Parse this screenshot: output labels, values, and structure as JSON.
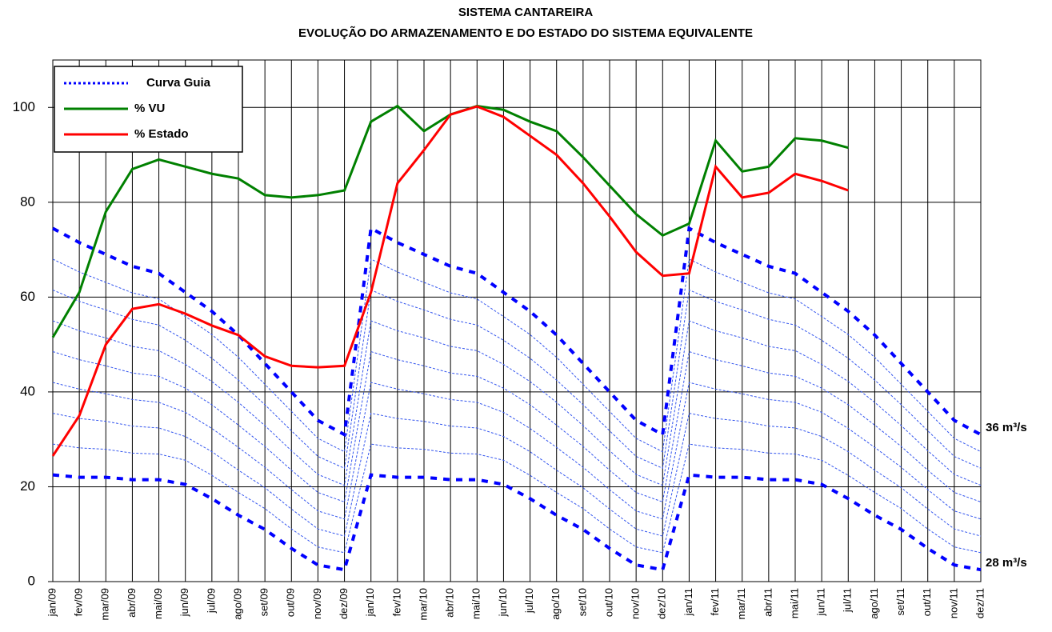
{
  "chart_data": {
    "type": "line",
    "title": "SISTEMA CANTAREIRA",
    "subtitle": "EVOLUÇÃO DO ARMAZENAMENTO E DO ESTADO DO SISTEMA EQUIVALENTE",
    "categories": [
      "jan/09",
      "fev/09",
      "mar/09",
      "abr/09",
      "mai/09",
      "jun/09",
      "jul/09",
      "ago/09",
      "set/09",
      "out/09",
      "nov/09",
      "dez/09",
      "jan/10",
      "fev/10",
      "mar/10",
      "abr/10",
      "mai/10",
      "jun/10",
      "jul/10",
      "ago/10",
      "set/10",
      "out/10",
      "nov/10",
      "dez/10",
      "jan/11",
      "fev/11",
      "mar/11",
      "abr/11",
      "mai/11",
      "jun/11",
      "jul/11",
      "ago/11",
      "set/11",
      "out/11",
      "nov/11",
      "dez/11"
    ],
    "ylim": [
      0,
      110
    ],
    "yticks": [
      0,
      20,
      40,
      60,
      80,
      100
    ],
    "grid": true,
    "legend": "top-left",
    "series": [
      {
        "name": "% VU",
        "color": "#008000",
        "values": [
          51.5,
          61,
          78,
          87,
          89,
          87.5,
          86,
          85,
          81.5,
          81,
          81.5,
          82.5,
          97,
          100.3,
          95,
          98.5,
          100.3,
          99.5,
          97,
          95,
          89.5,
          83.5,
          77.5,
          73,
          75.5,
          93,
          86.5,
          87.5,
          93.5,
          93,
          91.5,
          null,
          null,
          null,
          null,
          null
        ]
      },
      {
        "name": "% Estado",
        "color": "#ff0000",
        "values": [
          26.5,
          35,
          50,
          57.5,
          58.5,
          56.5,
          54,
          52,
          47.5,
          45.5,
          45.2,
          45.5,
          61,
          84,
          91,
          98.5,
          100.2,
          98,
          94,
          90,
          84,
          77,
          69.5,
          64.5,
          65,
          87.5,
          81,
          82,
          86,
          84.5,
          82.5,
          null,
          null,
          null,
          null,
          null
        ]
      }
    ],
    "guide": {
      "name": "Curva Guia",
      "color": "#0000ff",
      "thin_color": "#3355ee",
      "upper": [
        74.5,
        71.5,
        69,
        66.5,
        65,
        61,
        57,
        52,
        46,
        40,
        34,
        31,
        74.5,
        71.5,
        69,
        66.5,
        65,
        61,
        57,
        52,
        46,
        40,
        34,
        31,
        74.5,
        71.5,
        69,
        66.5,
        65,
        61,
        57,
        52,
        46,
        40,
        34,
        31
      ],
      "lower": [
        22.5,
        22,
        22,
        21.5,
        21.5,
        20.5,
        17.5,
        14,
        11,
        7,
        3.5,
        2.5,
        22.5,
        22,
        22,
        21.5,
        21.5,
        20.5,
        17.5,
        14,
        11,
        7,
        3.5,
        2.5,
        22.5,
        22,
        22,
        21.5,
        21.5,
        20.5,
        17.5,
        14,
        11,
        7,
        3.5,
        2.5
      ],
      "intermediate": [
        [
          29,
          28.2,
          27.9,
          27.1,
          26.9,
          25.6,
          22.4,
          18.8,
          15.4,
          11.1,
          7.3,
          6.1,
          29,
          28.2,
          27.9,
          27.1,
          26.9,
          25.6,
          22.4,
          18.8,
          15.4,
          11.1,
          7.3,
          6.1,
          29,
          28.2,
          27.9,
          27.1,
          26.9,
          25.6,
          22.4,
          18.8,
          15.4,
          11.1,
          7.3,
          6.1
        ],
        [
          35.5,
          34.4,
          33.8,
          32.8,
          32.4,
          30.6,
          27.4,
          23.5,
          19.8,
          15.3,
          11.1,
          9.6,
          35.5,
          34.4,
          33.8,
          32.8,
          32.4,
          30.6,
          27.4,
          23.5,
          19.8,
          15.3,
          11.1,
          9.6,
          35.5,
          34.4,
          33.8,
          32.8,
          32.4,
          30.6,
          27.4,
          23.5,
          19.8,
          15.3,
          11.1,
          9.6
        ],
        [
          42,
          40.6,
          39.6,
          38.4,
          37.8,
          35.7,
          32.3,
          28.3,
          24.1,
          19.4,
          14.9,
          13.2,
          42,
          40.6,
          39.6,
          38.4,
          37.8,
          35.7,
          32.3,
          28.3,
          24.1,
          19.4,
          14.9,
          13.2,
          42,
          40.6,
          39.6,
          38.4,
          37.8,
          35.7,
          32.3,
          28.3,
          24.1,
          19.4,
          14.9,
          13.2
        ],
        [
          48.5,
          46.8,
          45.5,
          44,
          43.3,
          40.8,
          37.3,
          33,
          28.5,
          23.5,
          18.8,
          16.8,
          48.5,
          46.8,
          45.5,
          44,
          43.3,
          40.8,
          37.3,
          33,
          28.5,
          23.5,
          18.8,
          16.8,
          48.5,
          46.8,
          45.5,
          44,
          43.3,
          40.8,
          37.3,
          33,
          28.5,
          23.5,
          18.8,
          16.8
        ],
        [
          55,
          52.9,
          51.4,
          49.6,
          48.7,
          45.8,
          42.2,
          37.8,
          32.9,
          27.6,
          22.6,
          20.3,
          55,
          52.9,
          51.4,
          49.6,
          48.7,
          45.8,
          42.2,
          37.8,
          32.9,
          27.6,
          22.6,
          20.3,
          55,
          52.9,
          51.4,
          49.6,
          48.7,
          45.8,
          42.2,
          37.8,
          32.9,
          27.6,
          22.6,
          20.3
        ],
        [
          61.5,
          59.1,
          57.3,
          55.3,
          54.1,
          50.9,
          47.1,
          42.5,
          37.3,
          31.8,
          26.4,
          23.9,
          61.5,
          59.1,
          57.3,
          55.3,
          54.1,
          50.9,
          47.1,
          42.5,
          37.3,
          31.8,
          26.4,
          23.9,
          61.5,
          59.1,
          57.3,
          55.3,
          54.1,
          50.9,
          47.1,
          42.5,
          37.3,
          31.8,
          26.4,
          23.9
        ],
        [
          68,
          65.3,
          63.1,
          60.9,
          59.6,
          55.9,
          52.1,
          47.3,
          41.6,
          35.9,
          30.2,
          27.4,
          68,
          65.3,
          63.1,
          60.9,
          59.6,
          55.9,
          52.1,
          47.3,
          41.6,
          35.9,
          30.2,
          27.4,
          68,
          65.3,
          63.1,
          60.9,
          59.6,
          55.9,
          52.1,
          47.3,
          41.6,
          35.9,
          30.2,
          27.4
        ]
      ]
    },
    "annotations": [
      "36 m³/s",
      "28 m³/s"
    ]
  }
}
